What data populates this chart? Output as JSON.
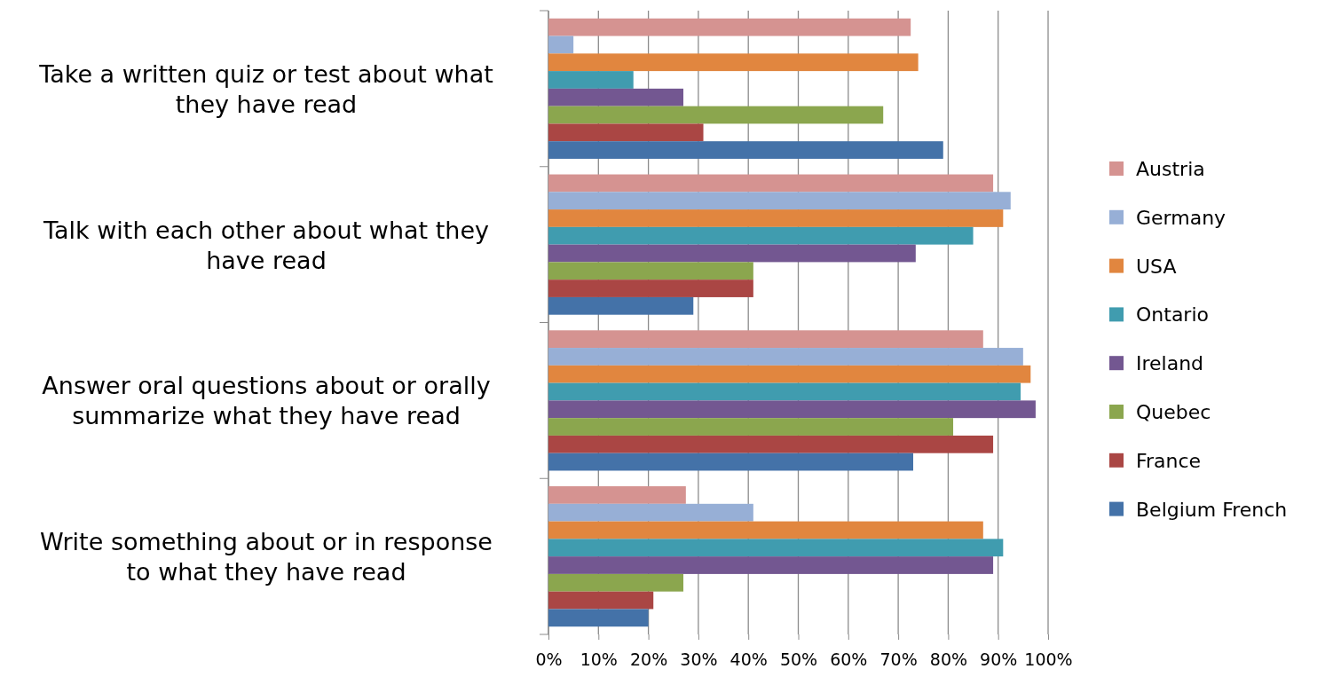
{
  "chart_data": {
    "type": "bar",
    "orientation": "horizontal",
    "categories": [
      "Take a written quiz or test about what they have read",
      "Talk with each other about what they have read",
      "Answer oral questions about or orally summarize what they have read",
      "Write something about or in response to what they have read"
    ],
    "series": [
      {
        "name": "Austria",
        "color": "#d59391",
        "values": [
          72.5,
          89,
          87,
          27.5
        ]
      },
      {
        "name": "Germany",
        "color": "#97afd6",
        "values": [
          5,
          92.5,
          95,
          41
        ]
      },
      {
        "name": "USA",
        "color": "#e1863f",
        "values": [
          74,
          91,
          96.5,
          87
        ]
      },
      {
        "name": "Ontario",
        "color": "#409caf",
        "values": [
          17,
          85,
          94.5,
          91
        ]
      },
      {
        "name": "Ireland",
        "color": "#735791",
        "values": [
          27,
          73.5,
          97.5,
          89
        ]
      },
      {
        "name": "Quebec",
        "color": "#8ba64e",
        "values": [
          67,
          41,
          81,
          27
        ]
      },
      {
        "name": "France",
        "color": "#aa4644",
        "values": [
          31,
          41,
          89,
          21
        ]
      },
      {
        "name": "Belgium French",
        "color": "#4472a8",
        "values": [
          79,
          29,
          73,
          20
        ]
      }
    ],
    "xlim": [
      0,
      100
    ],
    "xticks": [
      {
        "value": 0,
        "label": "0%"
      },
      {
        "value": 10,
        "label": "10%"
      },
      {
        "value": 20,
        "label": "20%"
      },
      {
        "value": 30,
        "label": "30%"
      },
      {
        "value": 40,
        "label": "40%"
      },
      {
        "value": 50,
        "label": "50%"
      },
      {
        "value": 60,
        "label": "60%"
      },
      {
        "value": 70,
        "label": "70%"
      },
      {
        "value": 80,
        "label": "80%"
      },
      {
        "value": 90,
        "label": "90%"
      },
      {
        "value": 100,
        "label": "100%"
      }
    ],
    "grid": "x",
    "legend": "right"
  }
}
